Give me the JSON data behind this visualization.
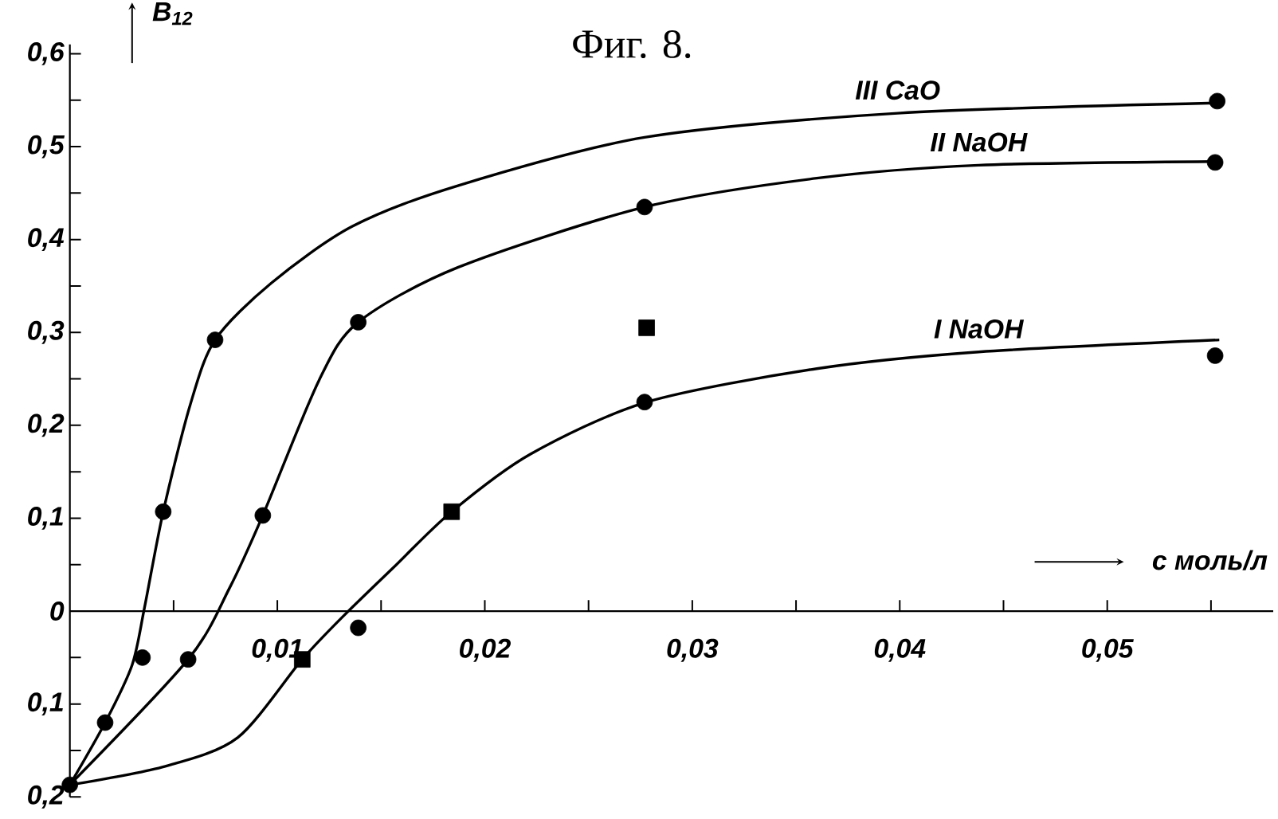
{
  "chart_data": {
    "type": "line",
    "title": "Фиг. 8.",
    "xlabel": "c моль/л",
    "ylabel": "B$_{12}$",
    "xlim": [
      0,
      0.058
    ],
    "ylim": [
      -0.2,
      0.61
    ],
    "xticks": [
      {
        "value": 0.005,
        "label": null
      },
      {
        "value": 0.01,
        "label": "0,01"
      },
      {
        "value": 0.015,
        "label": null
      },
      {
        "value": 0.02,
        "label": "0,02"
      },
      {
        "value": 0.025,
        "label": null
      },
      {
        "value": 0.03,
        "label": "0,03"
      },
      {
        "value": 0.035,
        "label": null
      },
      {
        "value": 0.04,
        "label": "0,04"
      },
      {
        "value": 0.045,
        "label": null
      },
      {
        "value": 0.05,
        "label": "0,05"
      },
      {
        "value": 0.055,
        "label": null
      }
    ],
    "yticks": [
      {
        "value": -0.2,
        "label": "0,2"
      },
      {
        "value": -0.15,
        "label": null
      },
      {
        "value": -0.1,
        "label": "0,1"
      },
      {
        "value": -0.05,
        "label": null
      },
      0,
      {
        "value": 0.05,
        "label": null
      },
      {
        "value": 0.1,
        "label": "0,1"
      },
      {
        "value": 0.15,
        "label": null
      },
      {
        "value": 0.2,
        "label": "0,2"
      },
      {
        "value": 0.25,
        "label": null
      },
      {
        "value": 0.3,
        "label": "0,3"
      },
      {
        "value": 0.35,
        "label": null
      },
      {
        "value": 0.4,
        "label": "0,4"
      },
      {
        "value": 0.45,
        "label": null
      },
      {
        "value": 0.5,
        "label": "0,5"
      },
      {
        "value": 0.55,
        "label": null
      },
      {
        "value": 0.6,
        "label": "0,6"
      }
    ],
    "series": [
      {
        "name": "III CaO",
        "color": "#000000",
        "x": [
          0,
          0.0017,
          0.003,
          0.0036,
          0.0045,
          0.0058,
          0.007,
          0.0097,
          0.0136,
          0.0187,
          0.0277,
          0.0399,
          0.0553
        ],
        "values": [
          -0.187,
          -0.12,
          -0.058,
          0.004,
          0.107,
          0.222,
          0.292,
          0.353,
          0.414,
          0.458,
          0.51,
          0.536,
          0.547
        ]
      },
      {
        "name": "II NaOH",
        "color": "#000000",
        "x": [
          0,
          0.0057,
          0.0077,
          0.0093,
          0.012,
          0.0139,
          0.0187,
          0.0277,
          0.036,
          0.0438,
          0.0552
        ],
        "values": [
          -0.187,
          -0.052,
          0.025,
          0.103,
          0.248,
          0.311,
          0.37,
          0.435,
          0.466,
          0.48,
          0.484
        ]
      },
      {
        "name": "I NaOH",
        "color": "#000000",
        "x": [
          0,
          0.0046,
          0.0081,
          0.0112,
          0.0132,
          0.0156,
          0.0184,
          0.0222,
          0.0278,
          0.036,
          0.0438,
          0.0554
        ],
        "values": [
          -0.187,
          -0.167,
          -0.136,
          -0.052,
          -0.005,
          0.047,
          0.107,
          0.169,
          0.225,
          0.261,
          0.279,
          0.292
        ]
      },
      {
        "type": "scatter",
        "marker": "circle",
        "color": "#000000",
        "x": [
          0,
          0.0017,
          0.0035,
          0.0045,
          0.007,
          0.0553
        ],
        "values": [
          -0.187,
          -0.12,
          -0.05,
          0.107,
          0.292,
          0.549
        ]
      },
      {
        "type": "scatter",
        "marker": "circle",
        "color": "#000000",
        "x": [
          0.0057,
          0.0093,
          0.0139,
          0.0277,
          0.0552
        ],
        "values": [
          -0.052,
          0.103,
          0.311,
          0.435,
          0.483
        ]
      },
      {
        "type": "scatter",
        "marker": "circle",
        "color": "#000000",
        "x": [
          0.0139,
          0.0277,
          0.0552
        ],
        "values": [
          -0.018,
          0.225,
          0.275
        ]
      },
      {
        "type": "scatter",
        "marker": "square",
        "color": "#000000",
        "x": [
          0.0112,
          0.0184,
          0.0278
        ],
        "values": [
          -0.052,
          0.107,
          0.305
        ]
      }
    ]
  }
}
